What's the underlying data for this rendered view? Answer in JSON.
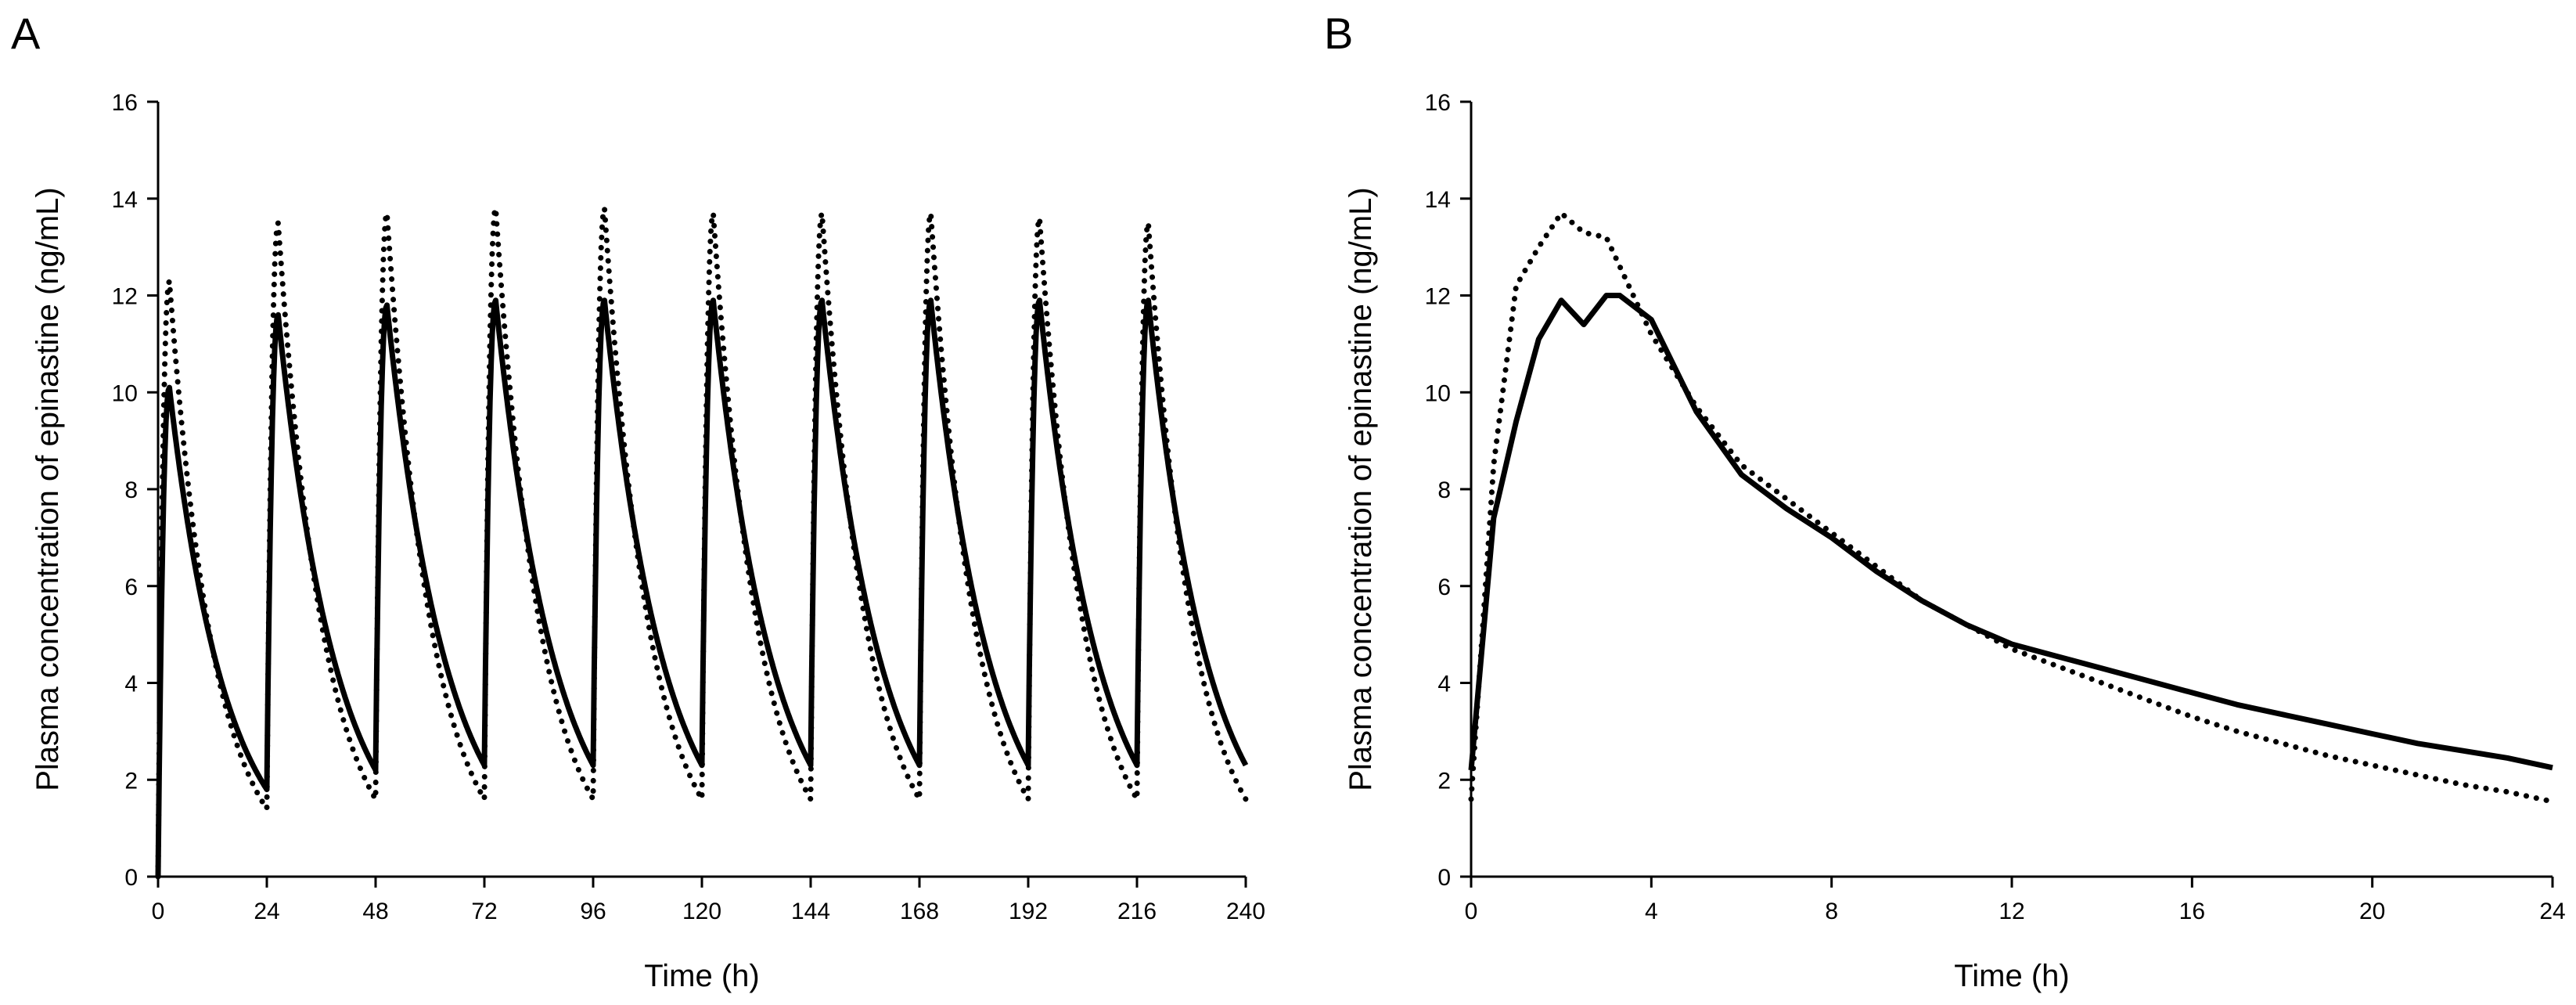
{
  "chart_data": [
    {
      "type": "line",
      "panel_label": "A",
      "xlabel": "Time (h)",
      "ylabel": "Plasma concentration of epinastine (ng/mL)",
      "xlim": [
        0,
        240
      ],
      "ylim": [
        0,
        16
      ],
      "x_ticks": [
        0,
        24,
        48,
        72,
        96,
        120,
        144,
        168,
        192,
        216,
        240
      ],
      "y_ticks": [
        0,
        2,
        4,
        6,
        8,
        10,
        12,
        14,
        16
      ],
      "grid": false,
      "dose_interval_h": 24,
      "series": [
        {
          "name": "solid",
          "style": "solid",
          "dose_times": [
            0,
            24,
            48,
            72,
            96,
            120,
            144,
            168,
            192,
            216
          ],
          "peaks": [
            10.1,
            11.6,
            11.8,
            11.9,
            11.9,
            11.9,
            11.9,
            11.9,
            11.9,
            11.9
          ],
          "troughs": [
            1.8,
            2.2,
            2.3,
            2.3,
            2.3,
            2.3,
            2.3,
            2.3,
            2.3,
            2.3
          ],
          "end_value": 2.3
        },
        {
          "name": "dotted",
          "style": "dotted",
          "dose_times": [
            0,
            24,
            48,
            72,
            96,
            120,
            144,
            168,
            192,
            216
          ],
          "peaks": [
            12.3,
            13.5,
            13.7,
            13.8,
            13.8,
            13.7,
            13.7,
            13.7,
            13.6,
            13.5
          ],
          "troughs": [
            1.4,
            1.6,
            1.6,
            1.6,
            1.6,
            1.6,
            1.6,
            1.6,
            1.6,
            1.6
          ],
          "end_value": 1.8
        }
      ]
    },
    {
      "type": "line",
      "panel_label": "B",
      "xlabel": "Time (h)",
      "ylabel": "Plasma concentration of epinastine (ng/mL)",
      "xlim": [
        0,
        24
      ],
      "ylim": [
        0,
        16
      ],
      "x_ticks": [
        0,
        4,
        8,
        12,
        16,
        20,
        24
      ],
      "y_ticks": [
        0,
        2,
        4,
        6,
        8,
        10,
        12,
        14,
        16
      ],
      "grid": false,
      "series": [
        {
          "name": "solid",
          "style": "solid",
          "x": [
            0,
            0.5,
            1,
            1.5,
            2,
            2.5,
            3,
            3.3,
            4,
            5,
            6,
            7,
            8,
            9,
            10,
            11,
            12,
            13,
            14,
            15,
            16,
            17,
            18,
            19,
            20,
            21,
            22,
            23,
            24
          ],
          "y": [
            2.2,
            7.4,
            9.4,
            11.1,
            11.9,
            11.4,
            12.0,
            12.0,
            11.5,
            9.6,
            8.3,
            7.6,
            7.0,
            6.3,
            5.7,
            5.2,
            4.8,
            4.55,
            4.3,
            4.05,
            3.8,
            3.55,
            3.35,
            3.15,
            2.95,
            2.75,
            2.6,
            2.45,
            2.25
          ]
        },
        {
          "name": "dotted",
          "style": "dotted",
          "x": [
            0,
            0.5,
            1,
            1.5,
            2,
            2.5,
            3,
            3.3,
            4,
            5,
            6,
            7,
            8,
            9,
            10,
            11,
            12,
            13,
            14,
            15,
            16,
            17,
            18,
            19,
            20,
            21,
            22,
            23,
            24
          ],
          "y": [
            1.6,
            8.5,
            12.2,
            13.0,
            13.7,
            13.3,
            13.2,
            12.6,
            11.2,
            9.7,
            8.5,
            7.8,
            7.1,
            6.4,
            5.7,
            5.2,
            4.7,
            4.35,
            4.0,
            3.65,
            3.3,
            3.0,
            2.75,
            2.5,
            2.3,
            2.1,
            1.9,
            1.75,
            1.55
          ]
        }
      ]
    }
  ]
}
